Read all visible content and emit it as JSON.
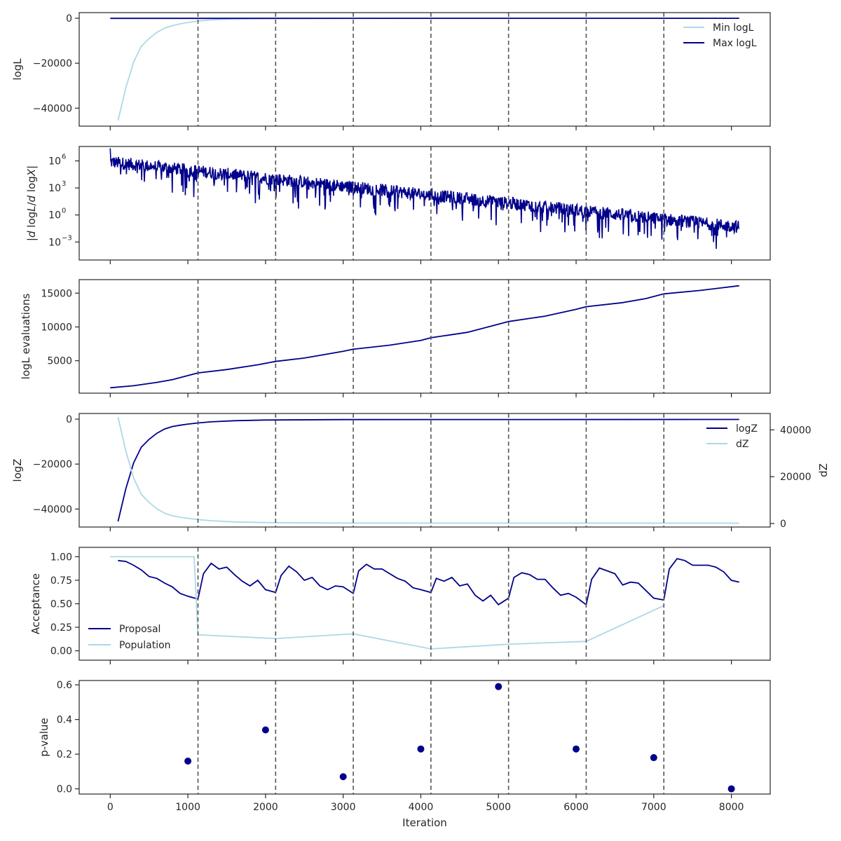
{
  "colors": {
    "dark": "#00008B",
    "light": "#ADD8E6",
    "axis": "#262626",
    "vline": "#555555"
  },
  "chart_data": [
    {
      "type": "line",
      "id": "logl",
      "ylabel": "logL",
      "xlim": [
        -400,
        8500
      ],
      "ylim": [
        -48000,
        2500
      ],
      "yticks": [
        0,
        -20000,
        -40000
      ],
      "ytick_labels": [
        "0",
        "−20000",
        "−40000"
      ],
      "vlines": [
        1130,
        2130,
        3130,
        4130,
        5130,
        6130,
        7130
      ],
      "legend": "top-right",
      "series": [
        {
          "name": "Min logL",
          "color": "light",
          "x": [
            100,
            200,
            300,
            400,
            500,
            600,
            700,
            800,
            900,
            1000,
            1100,
            1200,
            1400,
            1600,
            2000,
            8100
          ],
          "y": [
            -45500,
            -31000,
            -19500,
            -12500,
            -9000,
            -6300,
            -4400,
            -3300,
            -2500,
            -1900,
            -1400,
            -1000,
            -600,
            -300,
            -120,
            -40
          ]
        },
        {
          "name": "Max logL",
          "color": "dark",
          "x": [
            0,
            8100
          ],
          "y": [
            -50,
            -30
          ]
        }
      ]
    },
    {
      "type": "line",
      "id": "dlogl",
      "ylabel": "|d logL / d logX|",
      "yscale": "log",
      "xlim": [
        -400,
        8500
      ],
      "ylim": [
        -5,
        7.6
      ],
      "yticks_log10": [
        6,
        3,
        0,
        -3
      ],
      "ytick_labels": [
        "10",
        "10",
        "10",
        "10"
      ],
      "ytick_exps": [
        "6",
        "3",
        "0",
        "−3"
      ],
      "vlines": [
        1130,
        2130,
        3130,
        4130,
        5130,
        6130,
        7130
      ],
      "series": [
        {
          "color": "dark",
          "x_range": [
            0,
            8100
          ],
          "log10_trend": [
            [
              0,
              5.8
            ],
            [
              8100,
              -1.4
            ]
          ],
          "noisy": true
        }
      ]
    },
    {
      "type": "line",
      "id": "evals",
      "ylabel": "logL evaluations",
      "xlim": [
        -400,
        8500
      ],
      "ylim": [
        200,
        17000
      ],
      "yticks": [
        5000,
        10000,
        15000
      ],
      "ytick_labels": [
        "5000",
        "10000",
        "15000"
      ],
      "vlines": [
        1130,
        2130,
        3130,
        4130,
        5130,
        6130,
        7130
      ],
      "series": [
        {
          "color": "dark",
          "x": [
            0,
            300,
            600,
            800,
            1000,
            1130,
            1500,
            1900,
            2130,
            2500,
            3000,
            3130,
            3600,
            4000,
            4130,
            4600,
            4900,
            5130,
            5600,
            6000,
            6130,
            6600,
            6900,
            7130,
            7600,
            8100
          ],
          "y": [
            1000,
            1300,
            1800,
            2200,
            2800,
            3200,
            3700,
            4400,
            4900,
            5400,
            6400,
            6700,
            7300,
            8000,
            8400,
            9200,
            10100,
            10800,
            11600,
            12600,
            13000,
            13600,
            14200,
            14900,
            15400,
            16100
          ]
        }
      ]
    },
    {
      "type": "line",
      "id": "logz",
      "ylabel": "logZ",
      "y2label": "dZ",
      "xlim": [
        -400,
        8500
      ],
      "ylim": [
        -48000,
        2500
      ],
      "y2lim": [
        -1500,
        47000
      ],
      "yticks": [
        0,
        -20000,
        -40000
      ],
      "ytick_labels": [
        "0",
        "−20000",
        "−40000"
      ],
      "y2ticks": [
        0,
        20000,
        40000
      ],
      "y2tick_labels": [
        "0",
        "20000",
        "40000"
      ],
      "vlines": [
        1130,
        2130,
        3130,
        4130,
        5130,
        6130,
        7130
      ],
      "legend": "top-right",
      "series": [
        {
          "name": "logZ",
          "color": "dark",
          "axis": "left",
          "x": [
            100,
            200,
            300,
            400,
            500,
            600,
            700,
            800,
            900,
            1000,
            1130,
            1300,
            1600,
            2000,
            3000,
            8100
          ],
          "y": [
            -45500,
            -31000,
            -19500,
            -12500,
            -9000,
            -6300,
            -4400,
            -3300,
            -2700,
            -2200,
            -1700,
            -1200,
            -700,
            -400,
            -200,
            -150
          ]
        },
        {
          "name": "dZ",
          "color": "light",
          "axis": "right",
          "x": [
            100,
            200,
            300,
            400,
            500,
            600,
            700,
            800,
            900,
            1000,
            1130,
            1300,
            1600,
            2000,
            3000,
            8100
          ],
          "y": [
            45500,
            31000,
            19500,
            12500,
            9000,
            6300,
            4400,
            3300,
            2700,
            2200,
            1700,
            1200,
            700,
            400,
            200,
            150
          ]
        }
      ]
    },
    {
      "type": "line",
      "id": "acc",
      "ylabel": "Acceptance",
      "xlim": [
        -400,
        8500
      ],
      "ylim": [
        -0.1,
        1.1
      ],
      "yticks": [
        0,
        0.25,
        0.5,
        0.75,
        1.0
      ],
      "ytick_labels": [
        "0.00",
        "0.25",
        "0.50",
        "0.75",
        "1.00"
      ],
      "vlines": [
        1130,
        2130,
        3130,
        4130,
        5130,
        6130,
        7130
      ],
      "legend": "lower-left",
      "series": [
        {
          "name": "Proposal",
          "color": "dark",
          "x": [
            100,
            200,
            300,
            400,
            500,
            600,
            700,
            800,
            900,
            1000,
            1130,
            1200,
            1300,
            1400,
            1500,
            1600,
            1700,
            1800,
            1900,
            2000,
            2130,
            2200,
            2300,
            2400,
            2500,
            2600,
            2700,
            2800,
            2900,
            3000,
            3130,
            3200,
            3300,
            3400,
            3500,
            3600,
            3700,
            3800,
            3900,
            4000,
            4130,
            4200,
            4300,
            4400,
            4500,
            4600,
            4700,
            4800,
            4900,
            5000,
            5130,
            5200,
            5300,
            5400,
            5500,
            5600,
            5700,
            5800,
            5900,
            6000,
            6130,
            6200,
            6300,
            6400,
            6500,
            6600,
            6700,
            6800,
            6900,
            7000,
            7130,
            7200,
            7300,
            7400,
            7500,
            7600,
            7700,
            7800,
            7900,
            8000,
            8100
          ],
          "y": [
            0.96,
            0.95,
            0.91,
            0.86,
            0.79,
            0.77,
            0.72,
            0.68,
            0.61,
            0.58,
            0.55,
            0.82,
            0.93,
            0.87,
            0.89,
            0.81,
            0.74,
            0.69,
            0.75,
            0.65,
            0.62,
            0.8,
            0.9,
            0.84,
            0.75,
            0.78,
            0.69,
            0.65,
            0.69,
            0.68,
            0.61,
            0.85,
            0.92,
            0.87,
            0.87,
            0.82,
            0.77,
            0.74,
            0.67,
            0.65,
            0.62,
            0.77,
            0.74,
            0.78,
            0.69,
            0.71,
            0.59,
            0.53,
            0.59,
            0.49,
            0.56,
            0.78,
            0.83,
            0.81,
            0.76,
            0.76,
            0.67,
            0.59,
            0.61,
            0.57,
            0.49,
            0.76,
            0.88,
            0.85,
            0.82,
            0.7,
            0.73,
            0.72,
            0.64,
            0.56,
            0.54,
            0.87,
            0.98,
            0.96,
            0.91,
            0.91,
            0.91,
            0.89,
            0.84,
            0.75,
            0.73
          ]
        },
        {
          "name": "Population",
          "color": "light",
          "x": [
            0,
            1080,
            1130,
            2130,
            3130,
            4130,
            5130,
            6130,
            7130
          ],
          "y": [
            1.0,
            1.0,
            0.17,
            0.13,
            0.18,
            0.02,
            0.07,
            0.1,
            0.48
          ]
        }
      ]
    },
    {
      "type": "scatter",
      "id": "pval",
      "ylabel": "p-value",
      "xlabel": "Iteration",
      "xlim": [
        -400,
        8500
      ],
      "ylim": [
        -0.03,
        0.625
      ],
      "yticks": [
        0,
        0.2,
        0.4,
        0.6
      ],
      "ytick_labels": [
        "0.0",
        "0.2",
        "0.4",
        "0.6"
      ],
      "xticks": [
        0,
        1000,
        2000,
        3000,
        4000,
        5000,
        6000,
        7000,
        8000
      ],
      "xtick_labels": [
        "0",
        "1000",
        "2000",
        "3000",
        "4000",
        "5000",
        "6000",
        "7000",
        "8000"
      ],
      "vlines": [
        1130,
        2130,
        3130,
        4130,
        5130,
        6130,
        7130
      ],
      "series": [
        {
          "color": "dark",
          "x": [
            1000,
            2000,
            3000,
            4000,
            5000,
            6000,
            7000,
            8000
          ],
          "y": [
            0.16,
            0.34,
            0.07,
            0.23,
            0.59,
            0.23,
            0.18,
            0.0
          ]
        }
      ]
    }
  ]
}
